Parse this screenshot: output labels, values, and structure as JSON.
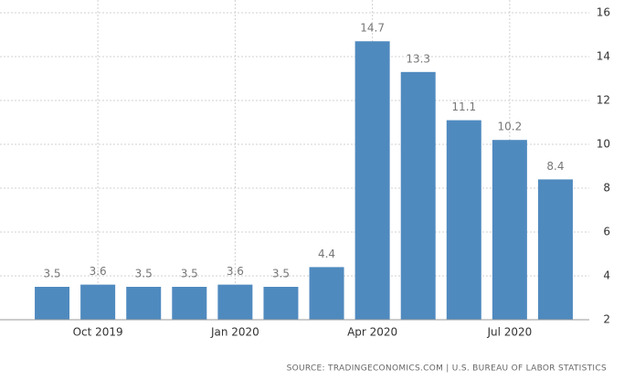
{
  "chart_data": {
    "type": "bar",
    "categories": [
      null,
      "Oct 2019",
      null,
      null,
      "Jan 2020",
      null,
      null,
      "Apr 2020",
      null,
      null,
      "Jul 2020",
      null
    ],
    "values": [
      3.5,
      3.6,
      3.5,
      3.5,
      3.6,
      3.5,
      4.4,
      14.7,
      13.3,
      11.1,
      10.2,
      8.4
    ],
    "color": "#4f8abf",
    "ylim": [
      2,
      16
    ],
    "yticks": [
      2,
      4,
      6,
      8,
      10,
      12,
      14,
      16
    ],
    "grid": true,
    "source": "SOURCE: TRADINGECONOMICS.COM | U.S. BUREAU OF LABOR STATISTICS"
  }
}
